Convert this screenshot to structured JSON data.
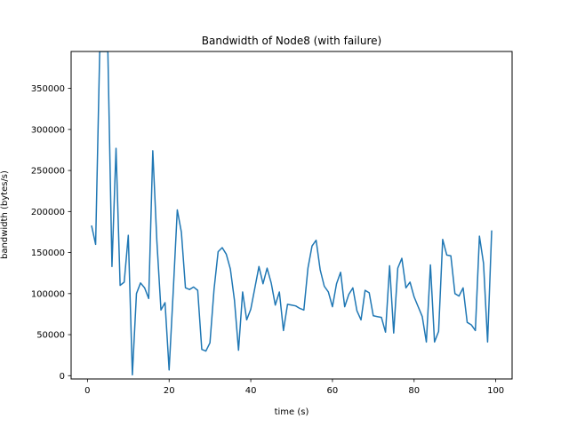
{
  "chart_data": {
    "type": "line",
    "title": "Bandwidth of Node8 (with failure)",
    "xlabel": "time (s)",
    "ylabel": "bandwidth (bytes/s)",
    "xlim": [
      -4,
      104
    ],
    "ylim": [
      -4000,
      395000
    ],
    "xticks": [
      0,
      20,
      40,
      60,
      80,
      100
    ],
    "yticks": [
      0,
      50000,
      100000,
      150000,
      200000,
      250000,
      300000,
      350000
    ],
    "grid": false,
    "series": [
      {
        "color": "#1f77b4",
        "x": [
          1,
          2,
          3,
          4,
          5,
          6,
          7,
          8,
          9,
          10,
          11,
          12,
          13,
          14,
          15,
          16,
          17,
          18,
          19,
          20,
          21,
          22,
          23,
          24,
          25,
          26,
          27,
          28,
          29,
          30,
          31,
          32,
          33,
          34,
          35,
          36,
          37,
          38,
          39,
          40,
          41,
          42,
          43,
          44,
          45,
          46,
          47,
          48,
          49,
          50,
          51,
          52,
          53,
          54,
          55,
          56,
          57,
          58,
          59,
          60,
          61,
          62,
          63,
          64,
          65,
          66,
          67,
          68,
          69,
          70,
          71,
          72,
          73,
          74,
          75,
          76,
          77,
          78,
          79,
          80,
          81,
          82,
          83,
          84,
          85,
          86,
          87,
          88,
          89,
          90,
          91,
          92,
          93,
          94,
          95,
          96,
          97,
          98,
          99
        ],
        "y": [
          183000,
          160000,
          395000,
          395000,
          395000,
          133000,
          277000,
          110000,
          114000,
          171000,
          1000,
          100000,
          113000,
          107000,
          94000,
          274000,
          164000,
          80000,
          89000,
          7000,
          102000,
          202000,
          175000,
          107000,
          105000,
          108000,
          104000,
          32000,
          30000,
          40000,
          105000,
          151000,
          156000,
          148000,
          130000,
          92000,
          31000,
          102000,
          68000,
          81000,
          107000,
          133000,
          112000,
          131000,
          113000,
          86000,
          102000,
          55000,
          87000,
          86000,
          85000,
          82000,
          80000,
          131000,
          158000,
          165000,
          129000,
          109000,
          102000,
          84000,
          112000,
          126000,
          84000,
          99000,
          107000,
          79000,
          68000,
          104000,
          101000,
          73000,
          72000,
          71000,
          53000,
          134000,
          52000,
          131000,
          143000,
          107000,
          114000,
          96000,
          84000,
          72000,
          41000,
          135000,
          41000,
          54000,
          166000,
          147000,
          146000,
          100000,
          97000,
          107000,
          65000,
          62000,
          55000,
          170000,
          137000,
          41000,
          177000
        ]
      }
    ]
  }
}
